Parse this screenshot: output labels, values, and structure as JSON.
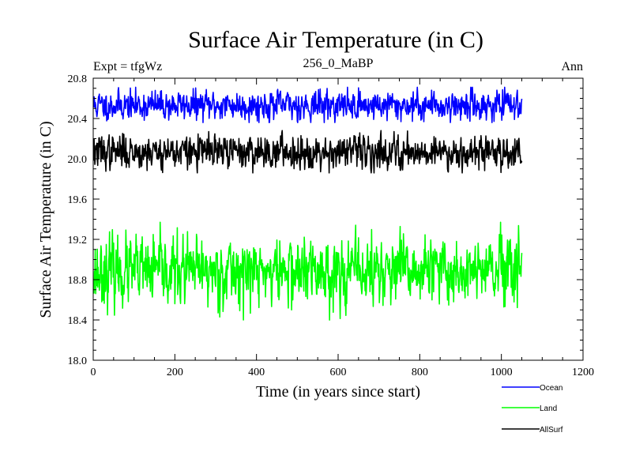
{
  "chart_data": {
    "type": "line",
    "title": "Surface Air Temperature (in C)",
    "subtitle_left": "Expt = tfgWz",
    "subtitle_center": "256_0_MaBP",
    "subtitle_right": "Ann",
    "xlabel": "Time (in years since start)",
    "ylabel": "Surface Air Temperature (in C)",
    "xlim": [
      0,
      1200
    ],
    "ylim": [
      18.0,
      20.8
    ],
    "x_ticks": [
      0,
      200,
      400,
      600,
      800,
      1000,
      1200
    ],
    "x_tick_labels": [
      "0",
      "200",
      "400",
      "600",
      "800",
      "1000",
      "1200"
    ],
    "y_ticks": [
      18.0,
      18.4,
      18.8,
      19.2,
      19.6,
      20.0,
      20.4,
      20.8
    ],
    "y_tick_labels": [
      "18.0",
      "18.4",
      "18.8",
      "19.2",
      "19.6",
      "20.0",
      "20.4",
      "20.8"
    ],
    "x_range_years": [
      1,
      1050
    ],
    "series": [
      {
        "name": "Ocean",
        "color": "#0000ff",
        "mean": 20.53,
        "amplitude": 0.07,
        "min": 20.36,
        "max": 20.71,
        "seed": 11
      },
      {
        "name": "Land",
        "color": "#00ff00",
        "mean": 18.88,
        "amplitude": 0.16,
        "min": 18.35,
        "max": 19.37,
        "seed": 23
      },
      {
        "name": "AllSurf",
        "color": "#000000",
        "mean": 20.07,
        "amplitude": 0.08,
        "min": 19.86,
        "max": 20.28,
        "seed": 37
      }
    ],
    "legend": [
      "Ocean",
      "Land",
      "AllSurf"
    ]
  }
}
